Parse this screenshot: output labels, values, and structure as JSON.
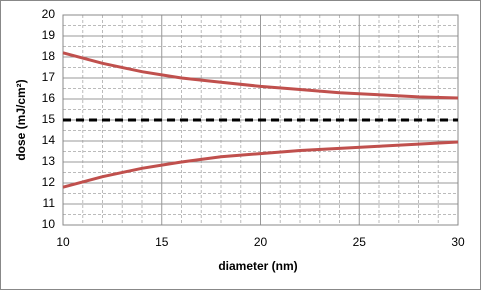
{
  "chart_data": {
    "type": "line",
    "x_label": "diameter (nm)",
    "y_label": "dose (mJ/cm²)",
    "xlim": [
      10,
      30
    ],
    "xticks": [
      10,
      15,
      20,
      25,
      30
    ],
    "ylim": [
      10,
      20
    ],
    "yticks": [
      10,
      11,
      12,
      13,
      14,
      15,
      16,
      17,
      18,
      19,
      20
    ],
    "grid": true,
    "series": [
      {
        "color": "#c0504d",
        "dashed": false,
        "x": [
          10,
          12,
          14,
          15,
          16,
          18,
          20,
          22,
          24,
          26,
          28,
          30
        ],
        "values": [
          18.2,
          17.7,
          17.3,
          17.15,
          17.0,
          16.8,
          16.6,
          16.45,
          16.3,
          16.2,
          16.1,
          16.05
        ]
      },
      {
        "color": "#c0504d",
        "dashed": false,
        "x": [
          10,
          12,
          14,
          15,
          16,
          18,
          20,
          22,
          24,
          26,
          28,
          30
        ],
        "values": [
          11.8,
          12.3,
          12.7,
          12.85,
          13.0,
          13.25,
          13.4,
          13.55,
          13.65,
          13.75,
          13.85,
          13.95
        ]
      },
      {
        "color": "#000000",
        "dashed": true,
        "x": [
          10,
          30
        ],
        "values": [
          15,
          15
        ]
      }
    ]
  }
}
